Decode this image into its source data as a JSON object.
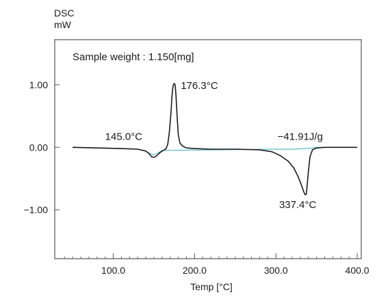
{
  "chart_data": {
    "type": "line",
    "title": "",
    "ylabel_line1": "DSC",
    "ylabel_line2": "mW",
    "xlabel": "Temp [°C]",
    "sample_note": "Sample weight : 1.150[mg]",
    "xlim": [
      28,
      405
    ],
    "ylim": [
      -1.78,
      1.72
    ],
    "x_ticks": [
      100,
      200,
      300,
      400
    ],
    "x_tick_labels": [
      "100.0",
      "200.0",
      "300.0",
      "400.0"
    ],
    "y_ticks": [
      1,
      0,
      -1
    ],
    "y_tick_labels": [
      "1.00",
      "0.00",
      "-1.00"
    ],
    "grid": false,
    "series": [
      {
        "color": "#1a1a1a",
        "x": [
          50,
          80,
          110,
          130,
          140,
          144,
          147,
          150,
          153,
          157,
          160,
          163,
          165,
          167,
          169,
          171,
          172,
          173,
          174,
          175,
          176,
          176.3,
          177,
          178,
          179,
          180,
          182,
          185,
          190,
          200,
          220,
          250,
          280,
          295,
          305,
          315,
          322,
          327,
          331,
          334,
          336,
          337.4,
          338.5,
          340,
          342,
          345,
          350,
          360,
          380,
          400
        ],
        "y": [
          0.0,
          -0.01,
          -0.02,
          -0.03,
          -0.06,
          -0.1,
          -0.15,
          -0.16,
          -0.14,
          -0.09,
          -0.06,
          -0.04,
          -0.02,
          0.05,
          0.25,
          0.55,
          0.78,
          0.93,
          1.0,
          1.02,
          1.0,
          0.97,
          0.85,
          0.62,
          0.4,
          0.2,
          0.07,
          0.02,
          -0.01,
          -0.02,
          -0.03,
          -0.03,
          -0.04,
          -0.07,
          -0.13,
          -0.22,
          -0.33,
          -0.46,
          -0.59,
          -0.7,
          -0.76,
          -0.75,
          -0.6,
          -0.38,
          -0.15,
          -0.04,
          -0.01,
          0.0,
          0.0,
          0.0
        ]
      },
      {
        "color": "#5bb8c8",
        "x": [
          50,
          110,
          130,
          140,
          145,
          150,
          155,
          160,
          300,
          320,
          335,
          345,
          350,
          360,
          380,
          400
        ],
        "y": [
          0.0,
          -0.02,
          -0.03,
          -0.06,
          -0.1,
          -0.12,
          -0.09,
          -0.05,
          -0.03,
          -0.03,
          -0.02,
          -0.01,
          0.0,
          0.0,
          0.0,
          0.0
        ]
      }
    ],
    "annotations": [
      {
        "text": "176.3°C",
        "x": 183,
        "y": 0.93
      },
      {
        "text": "145.0°C",
        "x": 90,
        "y": 0.12
      },
      {
        "text": "-41.91J/g",
        "x": 302,
        "y": 0.12
      },
      {
        "text": "337.4°C",
        "x": 304,
        "y": -0.97
      }
    ]
  }
}
